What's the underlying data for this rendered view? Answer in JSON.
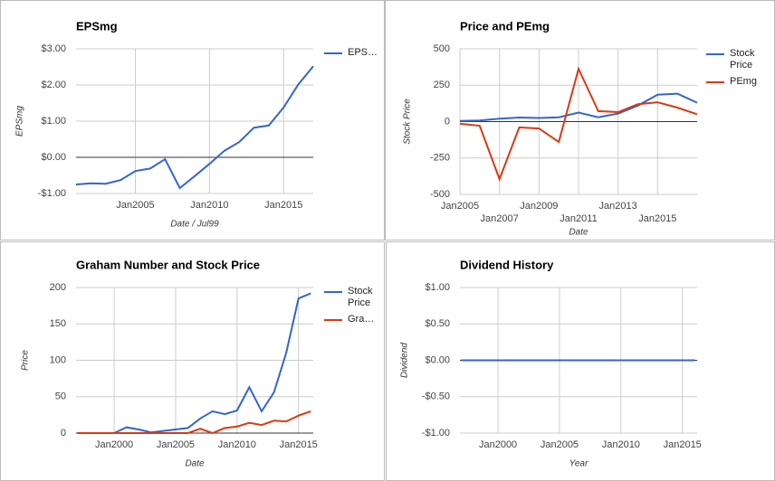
{
  "chart_data": [
    {
      "type": "line",
      "title": "EPSmg",
      "x_label": "Date / Jul99",
      "y_label": "EPSmg",
      "x": [
        2001,
        2002,
        2003,
        2004,
        2005,
        2006,
        2007,
        2008,
        2009,
        2010,
        2011,
        2012,
        2013,
        2014,
        2015,
        2016,
        2017
      ],
      "series": [
        {
          "name": "EPS…",
          "color": "#3366cc",
          "values": [
            -0.75,
            -0.72,
            -0.73,
            -0.63,
            -0.38,
            -0.31,
            -0.05,
            -0.85,
            -0.52,
            -0.18,
            0.18,
            0.42,
            0.82,
            0.88,
            1.38,
            2.02,
            2.52
          ]
        }
      ],
      "xlim": [
        2001,
        2017
      ],
      "xticks": [
        {
          "value": 2005,
          "label": "Jan2005"
        },
        {
          "value": 2010,
          "label": "Jan2010"
        },
        {
          "value": 2015,
          "label": "Jan2015"
        }
      ],
      "ylim": [
        -1,
        3
      ],
      "yticks": [
        {
          "value": 3,
          "label": "$3.00"
        },
        {
          "value": 2,
          "label": "$2.00"
        },
        {
          "value": 1,
          "label": "$1.00"
        },
        {
          "value": 0,
          "label": "$0.00"
        },
        {
          "value": -1,
          "label": "-$1.00"
        }
      ],
      "grid": true
    },
    {
      "type": "line",
      "title": "Price and PEmg",
      "x_label": "Date",
      "y_label": "Stock Price",
      "x": [
        2005,
        2006,
        2007,
        2008,
        2009,
        2010,
        2011,
        2012,
        2013,
        2014,
        2015,
        2016,
        2017
      ],
      "series": [
        {
          "name": "Stock Price",
          "color": "#3366cc",
          "values": [
            5,
            8,
            20,
            28,
            25,
            30,
            62,
            30,
            55,
            110,
            185,
            192,
            130
          ]
        },
        {
          "name": "PEmg",
          "color": "#dc3912",
          "values": [
            -15,
            -28,
            -395,
            -40,
            -47,
            -140,
            363,
            72,
            65,
            120,
            133,
            96,
            50
          ]
        }
      ],
      "xlim": [
        2005,
        2017
      ],
      "xticks": [
        {
          "value": 2005,
          "label": "Jan2005"
        },
        {
          "value": 2007,
          "label": "Jan2007"
        },
        {
          "value": 2009,
          "label": "Jan2009"
        },
        {
          "value": 2011,
          "label": "Jan2011"
        },
        {
          "value": 2013,
          "label": "Jan2013"
        },
        {
          "value": 2015,
          "label": "Jan2015"
        }
      ],
      "ylim": [
        -500,
        500
      ],
      "yticks": [
        500,
        250,
        0,
        -250,
        -500
      ],
      "grid": true
    },
    {
      "type": "line",
      "title": "Graham Number and Stock Price",
      "x_label": "Date",
      "y_label": "Price",
      "x": [
        1997,
        1998,
        1999,
        2000,
        2001,
        2002,
        2003,
        2004,
        2005,
        2006,
        2007,
        2008,
        2009,
        2010,
        2011,
        2012,
        2013,
        2014,
        2015,
        2016
      ],
      "series": [
        {
          "name": "Stock Price",
          "color": "#3366cc",
          "values": [
            0,
            0,
            0,
            0,
            8,
            5,
            1,
            3,
            5,
            7,
            20,
            30,
            26,
            31,
            63,
            30,
            56,
            110,
            185,
            192
          ]
        },
        {
          "name": "Gra…",
          "color": "#dc3912",
          "values": [
            0,
            0,
            0,
            0,
            0,
            0,
            0,
            0,
            0,
            0,
            6,
            0,
            7,
            9,
            14,
            11,
            17,
            16,
            24,
            30
          ]
        }
      ],
      "xlim": [
        1996.9,
        2016.2
      ],
      "xticks": [
        {
          "value": 2000,
          "label": "Jan2000"
        },
        {
          "value": 2005,
          "label": "Jan2005"
        },
        {
          "value": 2010,
          "label": "Jan2010"
        },
        {
          "value": 2015,
          "label": "Jan2015"
        }
      ],
      "ylim": [
        0,
        200
      ],
      "yticks": [
        200,
        150,
        100,
        50,
        0
      ],
      "grid": true
    },
    {
      "type": "line",
      "title": "Dividend History",
      "x_label": "Year",
      "y_label": "Dividend",
      "x": [
        1997,
        1998,
        1999,
        2000,
        2001,
        2002,
        2003,
        2004,
        2005,
        2006,
        2007,
        2008,
        2009,
        2010,
        2011,
        2012,
        2013,
        2014,
        2015,
        2016
      ],
      "series": [
        {
          "color": "#3366cc",
          "values": [
            0,
            0,
            0,
            0,
            0,
            0,
            0,
            0,
            0,
            0,
            0,
            0,
            0,
            0,
            0,
            0,
            0,
            0,
            0,
            0
          ]
        }
      ],
      "xlim": [
        1996.9,
        2016.2
      ],
      "xticks": [
        {
          "value": 2000,
          "label": "Jan2000"
        },
        {
          "value": 2005,
          "label": "Jan2005"
        },
        {
          "value": 2010,
          "label": "Jan2010"
        },
        {
          "value": 2015,
          "label": "Jan2015"
        }
      ],
      "ylim": [
        -1,
        1
      ],
      "yticks": [
        {
          "value": 1,
          "label": "$1.00"
        },
        {
          "value": 0.5,
          "label": "$0.50"
        },
        {
          "value": 0,
          "label": "$0.00"
        },
        {
          "value": -0.5,
          "label": "-$0.50"
        },
        {
          "value": -1,
          "label": "-$1.00"
        }
      ],
      "grid": true
    }
  ]
}
